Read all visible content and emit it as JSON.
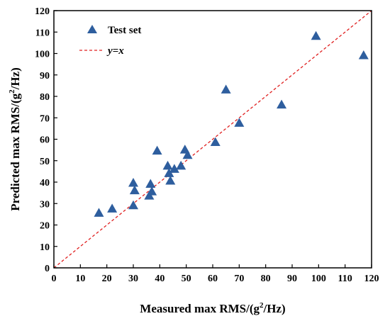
{
  "chart_data": {
    "type": "scatter",
    "title": "",
    "xlabel": {
      "prefix": "Measured max RMS/(g",
      "sup": "2",
      "suffix": "/Hz)"
    },
    "ylabel": {
      "prefix": "Predicted max RMS/(g",
      "sup": "2",
      "suffix": "/Hz)"
    },
    "xlim": [
      0,
      120
    ],
    "ylim": [
      0,
      120
    ],
    "xticks": [
      0,
      10,
      20,
      30,
      40,
      50,
      60,
      70,
      80,
      90,
      100,
      110,
      120
    ],
    "yticks": [
      0,
      10,
      20,
      30,
      40,
      50,
      60,
      70,
      80,
      90,
      100,
      110,
      120
    ],
    "grid": false,
    "legend_position": "top-left",
    "series": [
      {
        "name": "Test set",
        "marker": "triangle",
        "color": "#2E5E9E",
        "points": [
          [
            17,
            25.5
          ],
          [
            22,
            27.5
          ],
          [
            30,
            39.5
          ],
          [
            30.5,
            36
          ],
          [
            30,
            29
          ],
          [
            36,
            33.5
          ],
          [
            36.5,
            39
          ],
          [
            37,
            35.5
          ],
          [
            39,
            54.5
          ],
          [
            43,
            47.5
          ],
          [
            43.5,
            44
          ],
          [
            44,
            40.5
          ],
          [
            45.5,
            46
          ],
          [
            48,
            47.5
          ],
          [
            49.5,
            55
          ],
          [
            50.5,
            52.5
          ],
          [
            61,
            58.5
          ],
          [
            65,
            83
          ],
          [
            70,
            67.5
          ],
          [
            86,
            76
          ],
          [
            99,
            108
          ],
          [
            117,
            99
          ]
        ]
      }
    ],
    "reference_line": {
      "label_italic": "y",
      "label_rest": "=x",
      "color": "#E02020",
      "style": "dashed",
      "from": [
        0,
        0
      ],
      "to": [
        120,
        120
      ]
    }
  }
}
